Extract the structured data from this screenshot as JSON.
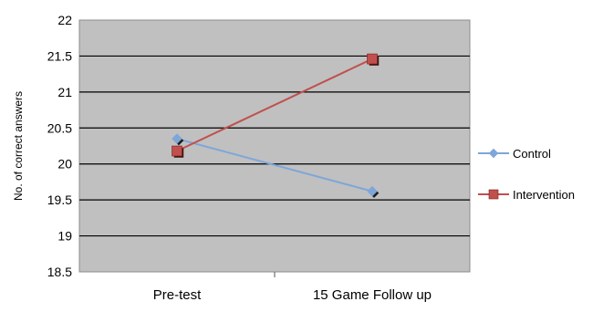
{
  "chart_data": {
    "type": "line",
    "title": "",
    "xlabel": "",
    "ylabel": "No. of correct answers",
    "categories": [
      "Pre-test",
      "15 Game Follow up"
    ],
    "ylim": [
      18.5,
      22
    ],
    "yticks": [
      "18.5",
      "19",
      "19.5",
      "20",
      "20.5",
      "21",
      "21.5",
      "22"
    ],
    "grid": true,
    "legend_position": "right",
    "plot_background": "#c0c0c0",
    "series": [
      {
        "name": "Control",
        "values": [
          20.35,
          19.62
        ],
        "color": "#7ea6d8",
        "marker": "diamond"
      },
      {
        "name": "Intervention",
        "values": [
          20.18,
          21.46
        ],
        "color": "#c0504d",
        "marker": "square"
      }
    ]
  }
}
